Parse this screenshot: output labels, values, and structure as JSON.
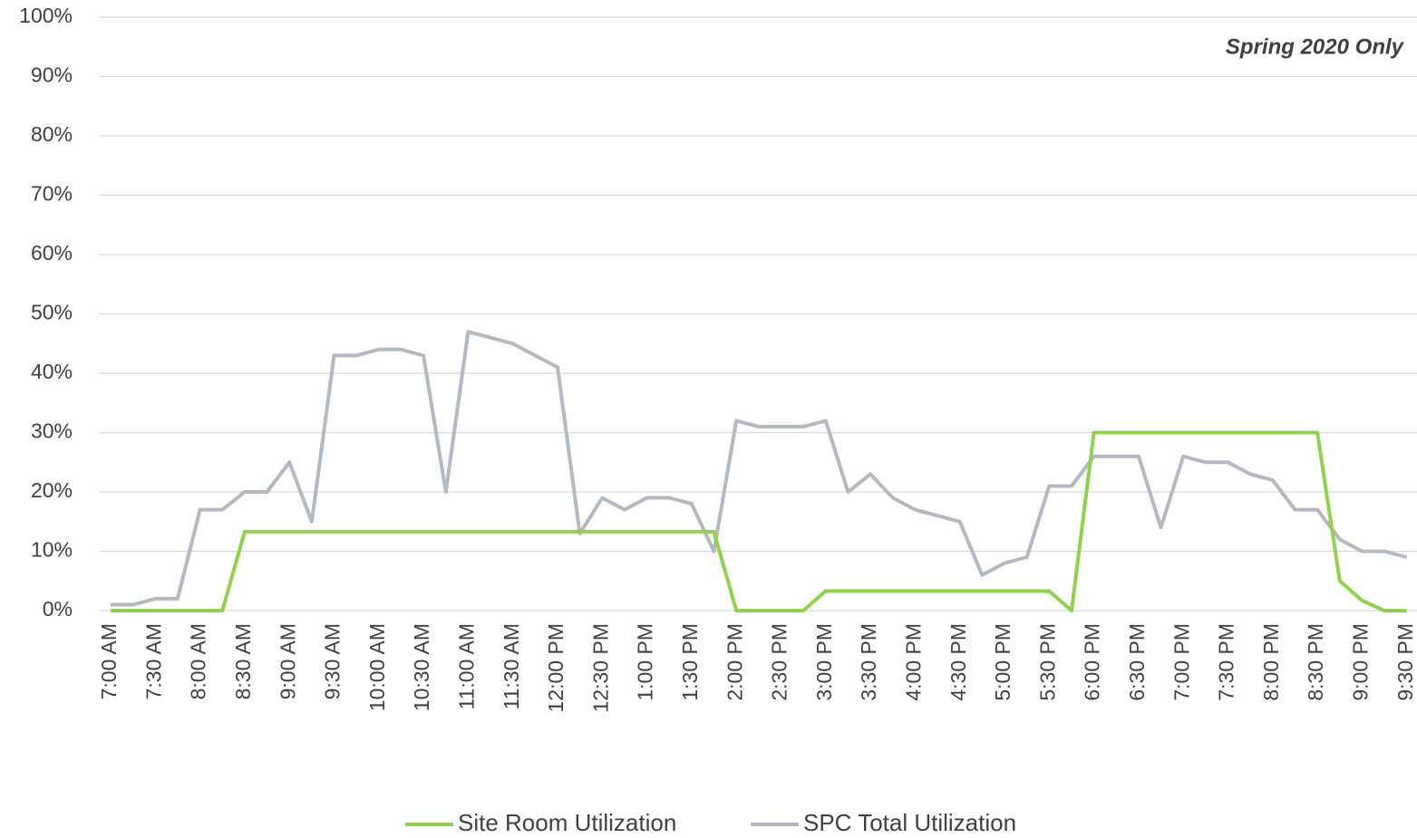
{
  "chart_data": {
    "type": "line",
    "annotation": "Spring 2020 Only",
    "categories": [
      "7:00 AM",
      null,
      "7:30 AM",
      null,
      "8:00 AM",
      null,
      "8:30 AM",
      null,
      "9:00 AM",
      null,
      "9:30 AM",
      null,
      "10:00 AM",
      null,
      "10:30 AM",
      null,
      "11:00 AM",
      null,
      "11:30 AM",
      null,
      "12:00 PM",
      null,
      "12:30 PM",
      null,
      "1:00 PM",
      null,
      "1:30 PM",
      null,
      "2:00 PM",
      null,
      "2:30 PM",
      null,
      "3:00 PM",
      null,
      "3:30 PM",
      null,
      "4:00 PM",
      null,
      "4:30 PM",
      null,
      "5:00 PM",
      null,
      "5:30 PM",
      null,
      "6:00 PM",
      null,
      "6:30 PM",
      null,
      "7:00 PM",
      null,
      "7:30 PM",
      null,
      "8:00 PM",
      null,
      "8:30 PM",
      null,
      "9:00 PM",
      null,
      "9:30 PM"
    ],
    "series": [
      {
        "name": "Site Room Utilization",
        "color": "#92d050",
        "values": [
          0,
          0,
          0,
          0,
          0,
          0,
          13.3,
          13.3,
          13.3,
          13.3,
          13.3,
          13.3,
          13.3,
          13.3,
          13.3,
          13.3,
          13.3,
          13.3,
          13.3,
          13.3,
          13.3,
          13.3,
          13.3,
          13.3,
          13.3,
          13.3,
          13.3,
          13.3,
          0,
          0,
          0,
          0,
          3.3,
          3.3,
          3.3,
          3.3,
          3.3,
          3.3,
          3.3,
          3.3,
          3.3,
          3.3,
          3.3,
          0,
          30,
          30,
          30,
          30,
          30,
          30,
          30,
          30,
          30,
          30,
          30,
          5,
          1.7,
          0,
          0
        ]
      },
      {
        "name": "SPC Total Utilization",
        "color": "#b4b9c0",
        "values": [
          1,
          1,
          2,
          2,
          17,
          17,
          20,
          20,
          25,
          15,
          43,
          43,
          44,
          44,
          43,
          20,
          47,
          46,
          45,
          43,
          41,
          13,
          19,
          17,
          19,
          19,
          18,
          10,
          32,
          31,
          31,
          31,
          32,
          20,
          23,
          19,
          17,
          16,
          15,
          6,
          8,
          9,
          21,
          21,
          26,
          26,
          26,
          14,
          26,
          25,
          25,
          23,
          22,
          17,
          17,
          12,
          10,
          10,
          9
        ]
      }
    ],
    "ylim": [
      0,
      100
    ],
    "yticks": [
      {
        "value": 0,
        "label": "0%"
      },
      {
        "value": 10,
        "label": "10%"
      },
      {
        "value": 20,
        "label": "20%"
      },
      {
        "value": 30,
        "label": "30%"
      },
      {
        "value": 40,
        "label": "40%"
      },
      {
        "value": 50,
        "label": "50%"
      },
      {
        "value": 60,
        "label": "60%"
      },
      {
        "value": 70,
        "label": "70%"
      },
      {
        "value": 80,
        "label": "80%"
      },
      {
        "value": 90,
        "label": "90%"
      },
      {
        "value": 100,
        "label": "100%"
      }
    ],
    "grid": true,
    "legend": "bottom"
  }
}
